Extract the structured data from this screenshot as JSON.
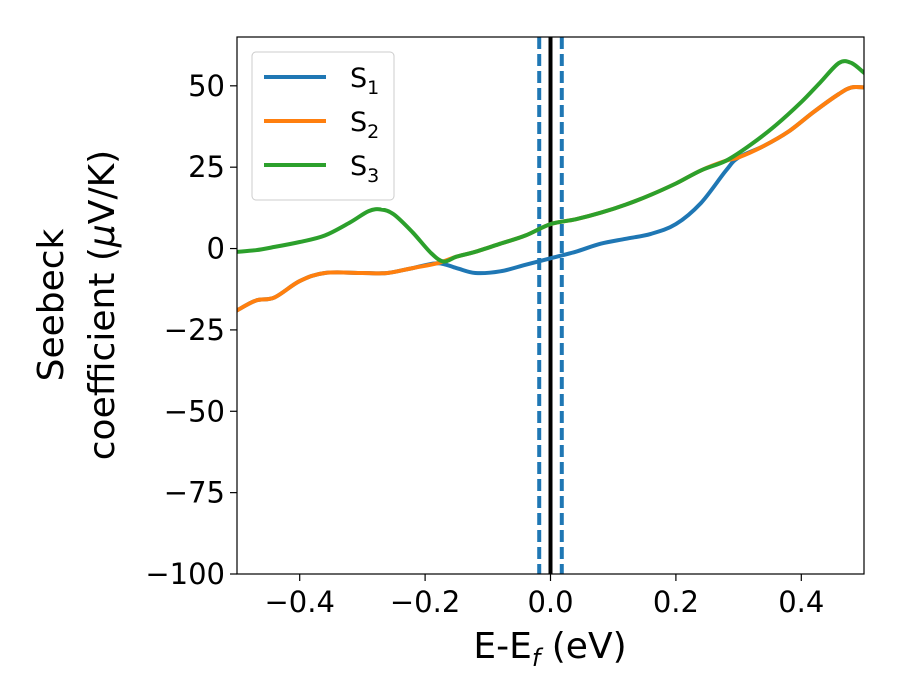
{
  "chart_data": {
    "type": "line",
    "xlabel": {
      "main": "E-E",
      "sub": "f",
      "unit": " (eV)"
    },
    "ylabel": {
      "line1": "Seebeck",
      "line2_prefix": "coefficient  (",
      "mu": "μ",
      "line2_suffix": "V/K)"
    },
    "xlim": [
      -0.5,
      0.5
    ],
    "ylim": [
      -100,
      65
    ],
    "x_ticks": [
      -0.4,
      -0.2,
      0.0,
      0.2,
      0.4
    ],
    "x_tick_labels": [
      "−0.4",
      "−0.2",
      "0.0",
      "0.2",
      "0.4"
    ],
    "y_ticks": [
      50,
      25,
      0,
      -25,
      -50,
      -75,
      -100
    ],
    "y_tick_labels": [
      "50",
      "25",
      "0",
      "−25",
      "−50",
      "−75",
      "−100"
    ],
    "grid": false,
    "legend_position": "top-left",
    "series": [
      {
        "name": "S",
        "sub": "1",
        "color": "#1f77b4",
        "points": [
          [
            -0.5,
            -19
          ],
          [
            -0.47,
            -16
          ],
          [
            -0.44,
            -15
          ],
          [
            -0.4,
            -10
          ],
          [
            -0.36,
            -7.5
          ],
          [
            -0.3,
            -7.5
          ],
          [
            -0.26,
            -7.5
          ],
          [
            -0.22,
            -6
          ],
          [
            -0.18,
            -4.5
          ],
          [
            -0.15,
            -6
          ],
          [
            -0.12,
            -7.5
          ],
          [
            -0.08,
            -7
          ],
          [
            -0.04,
            -5
          ],
          [
            0.0,
            -3
          ],
          [
            0.04,
            -1
          ],
          [
            0.08,
            1.5
          ],
          [
            0.12,
            3
          ],
          [
            0.16,
            4.5
          ],
          [
            0.2,
            7.5
          ],
          [
            0.24,
            14
          ],
          [
            0.28,
            24
          ],
          [
            0.3,
            28
          ],
          [
            0.34,
            31.5
          ],
          [
            0.38,
            36
          ],
          [
            0.42,
            42
          ],
          [
            0.46,
            47.5
          ],
          [
            0.48,
            49.5
          ],
          [
            0.5,
            49.5
          ]
        ]
      },
      {
        "name": "S",
        "sub": "2",
        "color": "#ff7f0e",
        "points": [
          [
            -0.5,
            -19
          ],
          [
            -0.47,
            -16
          ],
          [
            -0.44,
            -15
          ],
          [
            -0.4,
            -10
          ],
          [
            -0.36,
            -7.5
          ],
          [
            -0.3,
            -7.5
          ],
          [
            -0.26,
            -7.5
          ],
          [
            -0.22,
            -6
          ],
          [
            -0.18,
            -4.5
          ],
          [
            -0.15,
            -2.5
          ],
          [
            -0.12,
            -1
          ],
          [
            -0.08,
            1.5
          ],
          [
            -0.04,
            4
          ],
          [
            0.0,
            7.5
          ],
          [
            0.04,
            9
          ],
          [
            0.08,
            11
          ],
          [
            0.12,
            13.5
          ],
          [
            0.16,
            16.5
          ],
          [
            0.2,
            20
          ],
          [
            0.24,
            24
          ],
          [
            0.28,
            27
          ],
          [
            0.3,
            28
          ],
          [
            0.34,
            31.5
          ],
          [
            0.38,
            36
          ],
          [
            0.42,
            42
          ],
          [
            0.46,
            47.5
          ],
          [
            0.48,
            49.5
          ],
          [
            0.5,
            49.5
          ]
        ]
      },
      {
        "name": "S",
        "sub": "3",
        "color": "#2ca02c",
        "points": [
          [
            -0.5,
            -1
          ],
          [
            -0.47,
            -0.5
          ],
          [
            -0.44,
            0.5
          ],
          [
            -0.4,
            2
          ],
          [
            -0.36,
            4
          ],
          [
            -0.32,
            8
          ],
          [
            -0.29,
            11.5
          ],
          [
            -0.27,
            12
          ],
          [
            -0.25,
            10.5
          ],
          [
            -0.22,
            5
          ],
          [
            -0.19,
            -1.5
          ],
          [
            -0.17,
            -4
          ],
          [
            -0.15,
            -2.5
          ],
          [
            -0.12,
            -1
          ],
          [
            -0.08,
            1.5
          ],
          [
            -0.04,
            4
          ],
          [
            0.0,
            7.5
          ],
          [
            0.04,
            9
          ],
          [
            0.08,
            11
          ],
          [
            0.12,
            13.5
          ],
          [
            0.16,
            16.5
          ],
          [
            0.2,
            20
          ],
          [
            0.24,
            24
          ],
          [
            0.28,
            27
          ],
          [
            0.32,
            32
          ],
          [
            0.36,
            38
          ],
          [
            0.4,
            45
          ],
          [
            0.43,
            51
          ],
          [
            0.46,
            57
          ],
          [
            0.48,
            57
          ],
          [
            0.5,
            54
          ]
        ]
      }
    ],
    "vlines": [
      {
        "x": 0.0,
        "style": "solid",
        "color": "#000000"
      },
      {
        "x": -0.018,
        "style": "dashed",
        "color": "#1f77b4"
      },
      {
        "x": 0.018,
        "style": "dashed",
        "color": "#1f77b4"
      }
    ]
  }
}
